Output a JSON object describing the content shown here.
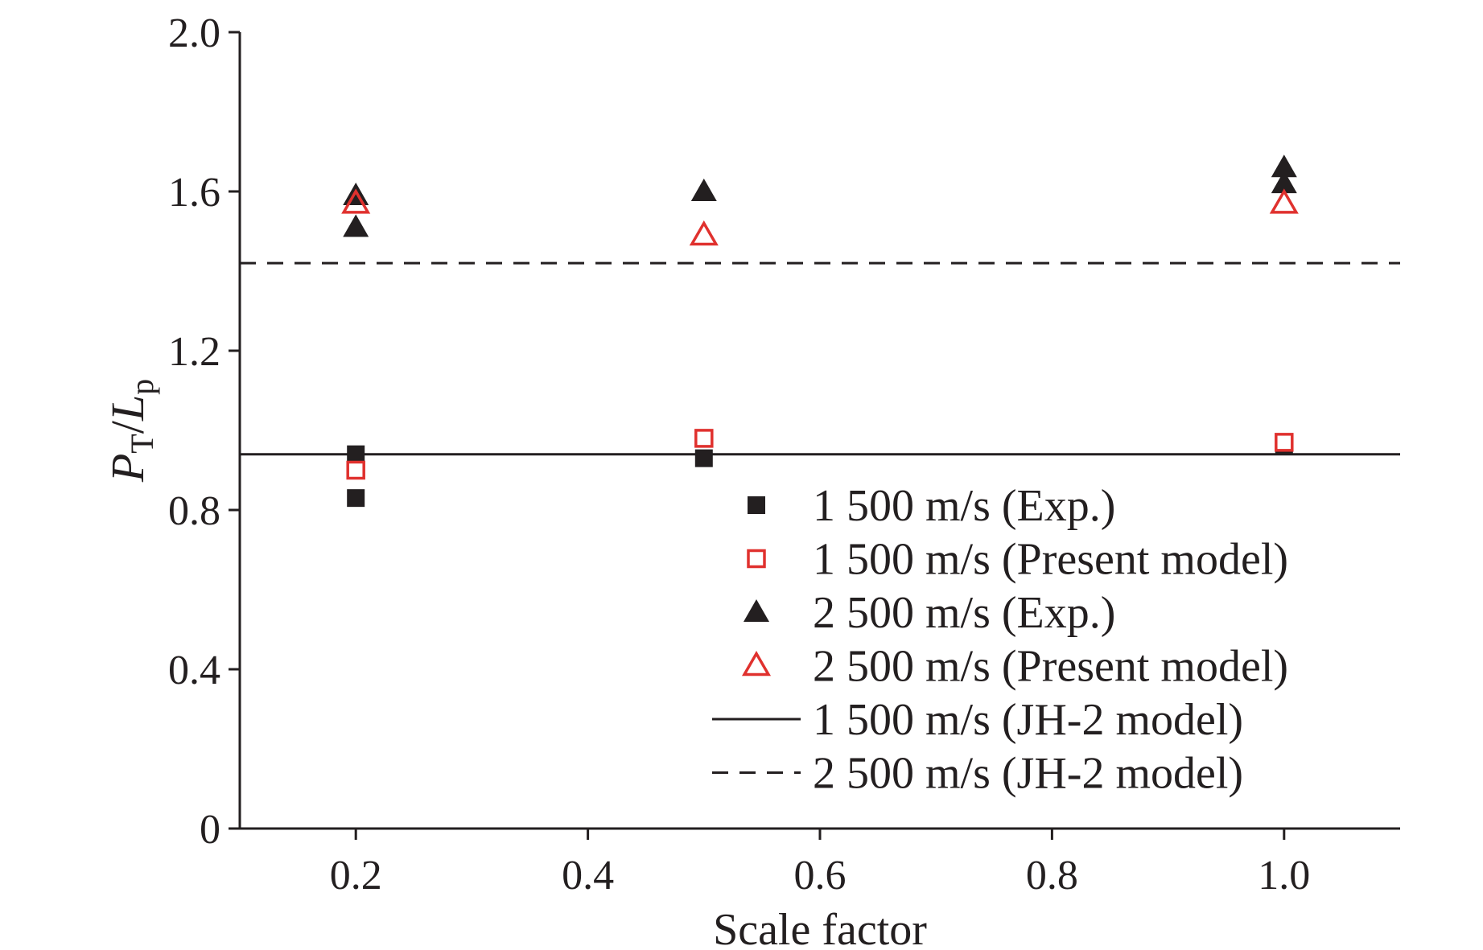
{
  "chart_data": {
    "type": "scatter",
    "xlabel": "Scale factor",
    "ylabel": {
      "main_italic_1": "P",
      "sub_1": "T",
      "slash": "/",
      "main_italic_2": "L",
      "sub_2": "p"
    },
    "xlim": [
      0.1,
      1.1
    ],
    "ylim": [
      0,
      2.0
    ],
    "xticks": [
      0.2,
      0.4,
      0.6,
      0.8,
      1.0
    ],
    "xtick_labels": [
      "0.2",
      "0.4",
      "0.6",
      "0.8",
      "1.0"
    ],
    "yticks": [
      0,
      0.4,
      0.8,
      1.2,
      1.6,
      2.0
    ],
    "ytick_labels": [
      "0",
      "0.4",
      "0.8",
      "1.2",
      "1.6",
      "2.0"
    ],
    "grid": false,
    "legend_position": "lower-right",
    "series": [
      {
        "name": "1 500 m/s (Exp.)",
        "marker": "square-filled",
        "color": "#231f20",
        "points": [
          {
            "x": 0.2,
            "y": 0.94
          },
          {
            "x": 0.2,
            "y": 0.83
          },
          {
            "x": 0.5,
            "y": 0.93
          },
          {
            "x": 1.0,
            "y": 0.96
          }
        ]
      },
      {
        "name": "1 500 m/s (Present model)",
        "marker": "square-open",
        "color": "#e0312e",
        "points": [
          {
            "x": 0.2,
            "y": 0.9
          },
          {
            "x": 0.5,
            "y": 0.98
          },
          {
            "x": 1.0,
            "y": 0.97
          }
        ]
      },
      {
        "name": "2 500 m/s (Exp.)",
        "marker": "triangle-filled",
        "color": "#231f20",
        "points": [
          {
            "x": 0.2,
            "y": 1.59
          },
          {
            "x": 0.2,
            "y": 1.51
          },
          {
            "x": 0.5,
            "y": 1.6
          },
          {
            "x": 1.0,
            "y": 1.66
          },
          {
            "x": 1.0,
            "y": 1.62
          }
        ]
      },
      {
        "name": "2 500 m/s (Present model)",
        "marker": "triangle-open",
        "color": "#e0312e",
        "points": [
          {
            "x": 0.2,
            "y": 1.57
          },
          {
            "x": 0.5,
            "y": 1.49
          },
          {
            "x": 1.0,
            "y": 1.57
          }
        ]
      },
      {
        "name": "1 500 m/s (JH-2 model)",
        "marker": "line-solid",
        "color": "#231f20",
        "y": 0.94
      },
      {
        "name": "2 500 m/s (JH-2 model)",
        "marker": "line-dashed",
        "color": "#231f20",
        "y": 1.42
      }
    ]
  }
}
